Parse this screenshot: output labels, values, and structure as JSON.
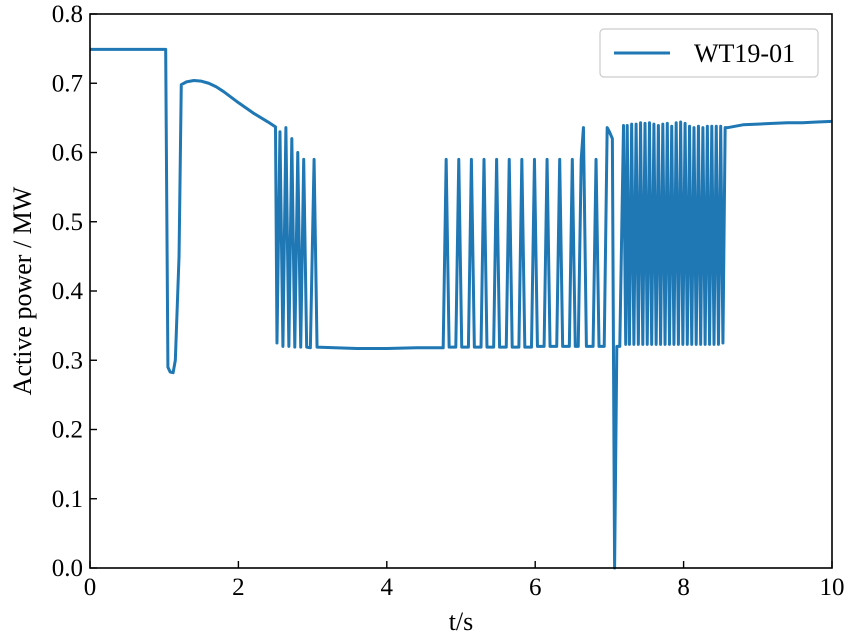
{
  "chart_data": {
    "type": "line",
    "title": "",
    "xlabel": "t/s",
    "ylabel": "Active power / MW",
    "xlim": [
      0,
      10
    ],
    "ylim": [
      0,
      0.8
    ],
    "x_ticks": [
      0,
      2,
      4,
      6,
      8,
      10
    ],
    "y_ticks": [
      0.0,
      0.1,
      0.2,
      0.3,
      0.4,
      0.5,
      0.6,
      0.7,
      0.8
    ],
    "x_tick_labels": [
      "0",
      "2",
      "4",
      "6",
      "8",
      "10"
    ],
    "y_tick_labels": [
      "0.0",
      "0.1",
      "0.2",
      "0.3",
      "0.4",
      "0.5",
      "0.6",
      "0.7",
      "0.8"
    ],
    "grid": false,
    "legend_position": "top-right",
    "series": [
      {
        "name": "WT19-01",
        "color": "#1f77b4",
        "points": [
          [
            0,
            0.749
          ],
          [
            1.0,
            0.749
          ],
          [
            1.02,
            0.749
          ],
          [
            1.05,
            0.29
          ],
          [
            1.08,
            0.283
          ],
          [
            1.12,
            0.282
          ],
          [
            1.15,
            0.3
          ],
          [
            1.2,
            0.45
          ],
          [
            1.23,
            0.698
          ],
          [
            1.3,
            0.702
          ],
          [
            1.4,
            0.704
          ],
          [
            1.5,
            0.703
          ],
          [
            1.6,
            0.7
          ],
          [
            1.7,
            0.695
          ],
          [
            1.8,
            0.688
          ],
          [
            2.0,
            0.672
          ],
          [
            2.2,
            0.657
          ],
          [
            2.4,
            0.644
          ],
          [
            2.5,
            0.637
          ],
          [
            2.52,
            0.325
          ],
          [
            2.56,
            0.63
          ],
          [
            2.6,
            0.32
          ],
          [
            2.64,
            0.636
          ],
          [
            2.68,
            0.32
          ],
          [
            2.72,
            0.62
          ],
          [
            2.76,
            0.319
          ],
          [
            2.8,
            0.6
          ],
          [
            2.84,
            0.319
          ],
          [
            2.88,
            0.59
          ],
          [
            2.92,
            0.319
          ],
          [
            2.97,
            0.318
          ],
          [
            3.02,
            0.59
          ],
          [
            3.06,
            0.319
          ],
          [
            3.3,
            0.318
          ],
          [
            3.6,
            0.317
          ],
          [
            4.0,
            0.317
          ],
          [
            4.4,
            0.318
          ],
          [
            4.74,
            0.318
          ],
          [
            4.76,
            0.318
          ],
          [
            4.8,
            0.59
          ],
          [
            4.84,
            0.319
          ],
          [
            4.93,
            0.319
          ],
          [
            4.97,
            0.59
          ],
          [
            5.01,
            0.319
          ],
          [
            5.1,
            0.319
          ],
          [
            5.14,
            0.59
          ],
          [
            5.18,
            0.319
          ],
          [
            5.27,
            0.319
          ],
          [
            5.31,
            0.59
          ],
          [
            5.35,
            0.319
          ],
          [
            5.44,
            0.319
          ],
          [
            5.48,
            0.59
          ],
          [
            5.52,
            0.319
          ],
          [
            5.61,
            0.319
          ],
          [
            5.65,
            0.59
          ],
          [
            5.69,
            0.319
          ],
          [
            5.78,
            0.319
          ],
          [
            5.82,
            0.59
          ],
          [
            5.86,
            0.319
          ],
          [
            5.95,
            0.319
          ],
          [
            5.99,
            0.59
          ],
          [
            6.03,
            0.32
          ],
          [
            6.12,
            0.32
          ],
          [
            6.16,
            0.59
          ],
          [
            6.2,
            0.32
          ],
          [
            6.29,
            0.32
          ],
          [
            6.33,
            0.59
          ],
          [
            6.37,
            0.32
          ],
          [
            6.46,
            0.32
          ],
          [
            6.5,
            0.59
          ],
          [
            6.54,
            0.32
          ],
          [
            6.58,
            0.32
          ],
          [
            6.62,
            0.59
          ],
          [
            6.65,
            0.636
          ],
          [
            6.69,
            0.32
          ],
          [
            6.78,
            0.32
          ],
          [
            6.82,
            0.59
          ],
          [
            6.86,
            0.32
          ],
          [
            6.93,
            0.32
          ],
          [
            6.97,
            0.636
          ],
          [
            7.0,
            0.63
          ],
          [
            7.04,
            0.62
          ],
          [
            7.07,
            0.0
          ],
          [
            7.1,
            0.32
          ],
          [
            7.14,
            0.32
          ],
          [
            7.19,
            0.639
          ],
          [
            7.22,
            0.323
          ],
          [
            7.24,
            0.639
          ],
          [
            7.27,
            0.323
          ],
          [
            7.3,
            0.641
          ],
          [
            7.33,
            0.323
          ],
          [
            7.36,
            0.641
          ],
          [
            7.39,
            0.323
          ],
          [
            7.42,
            0.643
          ],
          [
            7.45,
            0.323
          ],
          [
            7.48,
            0.642
          ],
          [
            7.51,
            0.323
          ],
          [
            7.54,
            0.643
          ],
          [
            7.57,
            0.323
          ],
          [
            7.6,
            0.641
          ],
          [
            7.63,
            0.323
          ],
          [
            7.66,
            0.639
          ],
          [
            7.69,
            0.323
          ],
          [
            7.72,
            0.641
          ],
          [
            7.75,
            0.323
          ],
          [
            7.78,
            0.642
          ],
          [
            7.81,
            0.323
          ],
          [
            7.84,
            0.638
          ],
          [
            7.87,
            0.323
          ],
          [
            7.9,
            0.643
          ],
          [
            7.93,
            0.323
          ],
          [
            7.96,
            0.644
          ],
          [
            7.99,
            0.323
          ],
          [
            8.02,
            0.642
          ],
          [
            8.05,
            0.323
          ],
          [
            8.08,
            0.638
          ],
          [
            8.11,
            0.323
          ],
          [
            8.14,
            0.636
          ],
          [
            8.17,
            0.323
          ],
          [
            8.2,
            0.638
          ],
          [
            8.23,
            0.323
          ],
          [
            8.26,
            0.636
          ],
          [
            8.29,
            0.323
          ],
          [
            8.32,
            0.638
          ],
          [
            8.35,
            0.323
          ],
          [
            8.38,
            0.638
          ],
          [
            8.41,
            0.323
          ],
          [
            8.44,
            0.638
          ],
          [
            8.47,
            0.323
          ],
          [
            8.5,
            0.638
          ],
          [
            8.53,
            0.325
          ],
          [
            8.56,
            0.636
          ],
          [
            8.6,
            0.636
          ],
          [
            8.7,
            0.638
          ],
          [
            8.8,
            0.64
          ],
          [
            9.0,
            0.641
          ],
          [
            9.2,
            0.642
          ],
          [
            9.4,
            0.643
          ],
          [
            9.6,
            0.643
          ],
          [
            9.8,
            0.644
          ],
          [
            10.0,
            0.645
          ]
        ]
      }
    ]
  }
}
